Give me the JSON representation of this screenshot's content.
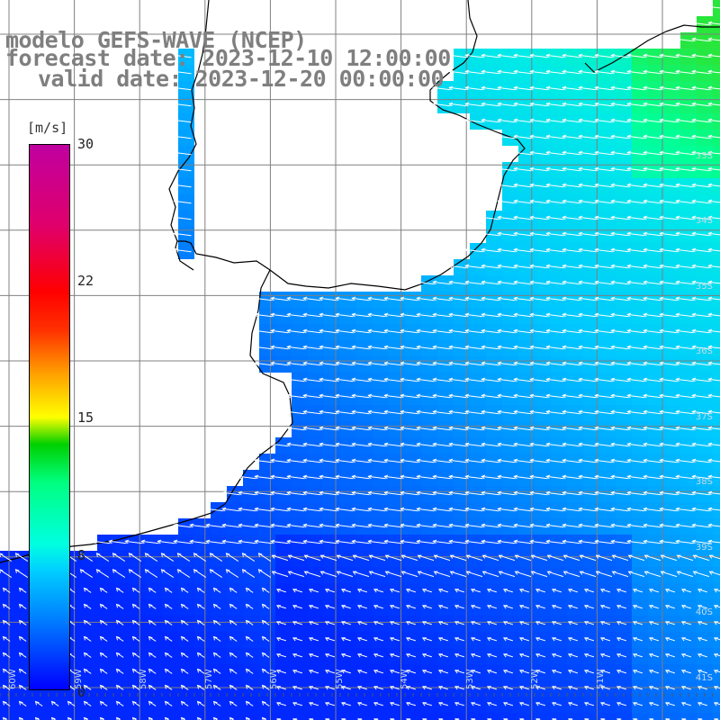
{
  "title": {
    "model": "modelo GEFS-WAVE (NCEP)",
    "forecast": "forecast date: 2023-12-10 12:00:00",
    "valid": "valid date: 2023-12-20 00:00:00"
  },
  "colorbar": {
    "unit": "[m/s]",
    "ticks": [
      "30",
      "22",
      "15",
      "8",
      "0"
    ],
    "tick_values": [
      30,
      22,
      15,
      8,
      0
    ],
    "range": [
      0,
      30
    ],
    "colors": [
      "#0000ff",
      "#0080ff",
      "#00d0ff",
      "#00ffe0",
      "#00ff80",
      "#00d000",
      "#ffff00",
      "#ffa000",
      "#ff3000",
      "#ff0000",
      "#e0006a",
      "#c000a0"
    ]
  },
  "map": {
    "lat_labels": [
      "33S",
      "34S",
      "35S",
      "36S",
      "37S",
      "38S",
      "39S",
      "40S",
      "41S"
    ],
    "lon_labels": [
      "60W",
      "59W",
      "58W",
      "57W",
      "56W",
      "55W",
      "54W",
      "53W",
      "52W",
      "51W"
    ],
    "land_color": "#ffffff",
    "grid_color": "#808080",
    "arrow_color": "#ffffff"
  }
}
